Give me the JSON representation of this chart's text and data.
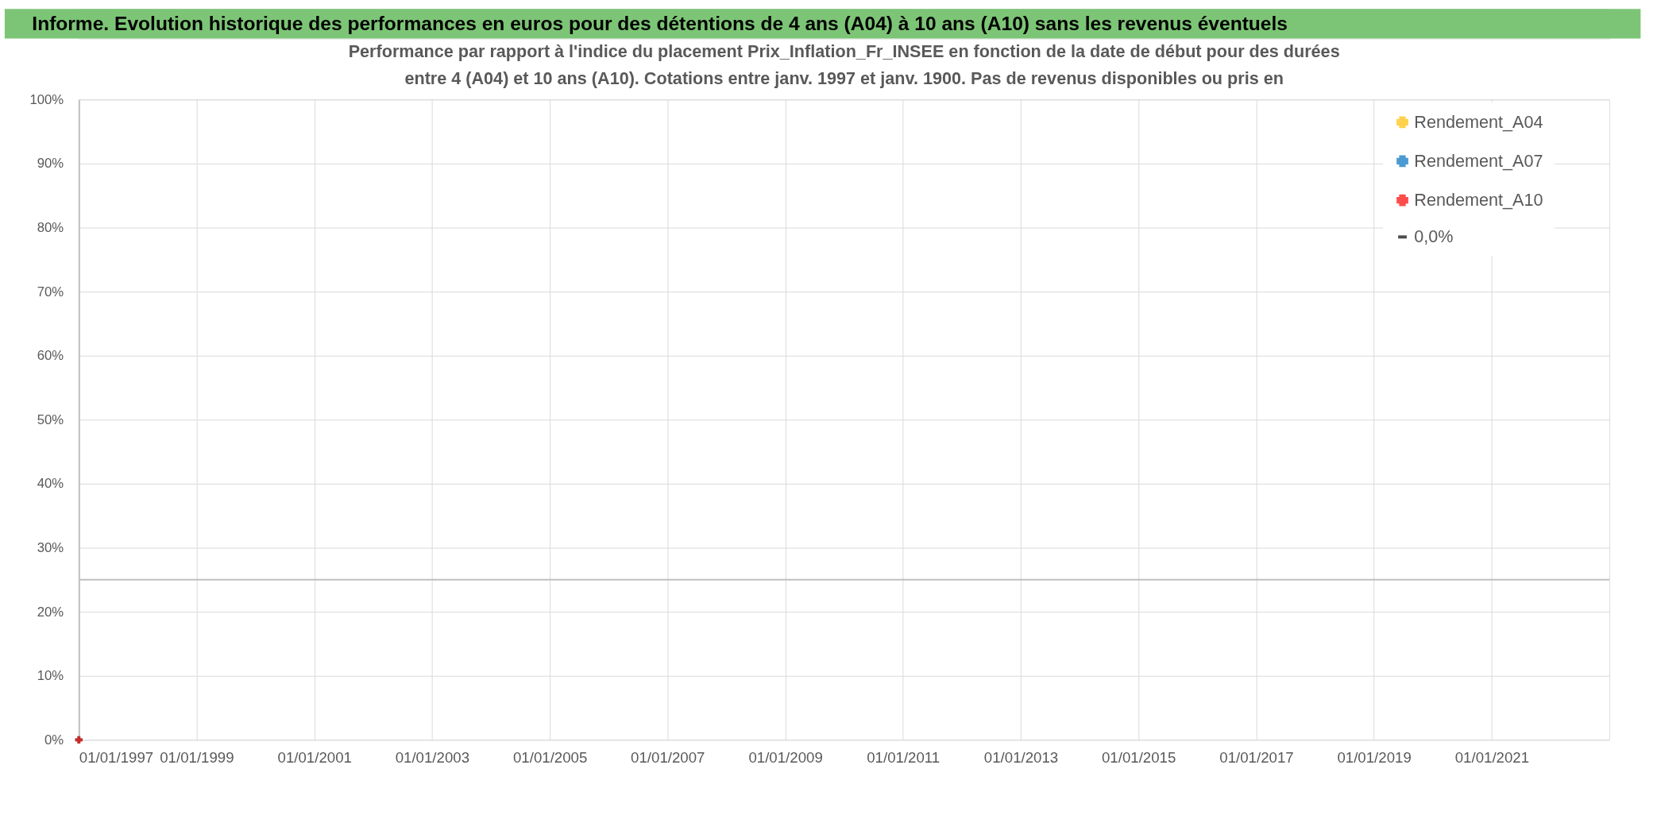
{
  "chart_data": {
    "type": "scatter",
    "title": "Informe. Evolution historique des performances en euros pour des détentions de 4 ans (A04) à 10 ans (A10) sans les revenus éventuels",
    "subtitle": [
      "Performance par rapport à l'indice du placement Prix_Inflation_Fr_INSEE en fonction de la date de début pour des durées",
      "entre 4 (A04) et 10 ans (A10). Cotations entre janv. 1997 et janv. 1900. Pas de revenus disponibles ou pris en"
    ],
    "series": [
      {
        "name": "Rendement_A04",
        "color": "#ffc000",
        "x": [
          "1997-01-01"
        ],
        "values": [
          0
        ]
      },
      {
        "name": "Rendement_A07",
        "color": "#0070c0",
        "x": [
          "1997-01-01"
        ],
        "values": [
          0
        ]
      },
      {
        "name": "Rendement_A10",
        "color": "#ff0000",
        "x": [
          "1997-01-01"
        ],
        "values": [
          0
        ]
      },
      {
        "name": "0,0%",
        "type": "line",
        "color": "#000000"
      }
    ],
    "xlim": [
      "1997-01-01",
      "2023-01-01"
    ],
    "xticks": [
      {
        "value": "1997-01-01",
        "label": "01/01/1997"
      },
      {
        "value": "1999-01-01",
        "label": "01/01/1999"
      },
      {
        "value": "2001-01-01",
        "label": "01/01/2001"
      },
      {
        "value": "2003-01-01",
        "label": "01/01/2003"
      },
      {
        "value": "2005-01-01",
        "label": "01/01/2005"
      },
      {
        "value": "2007-01-01",
        "label": "01/01/2007"
      },
      {
        "value": "2009-01-01",
        "label": "01/01/2009"
      },
      {
        "value": "2011-01-01",
        "label": "01/01/2011"
      },
      {
        "value": "2013-01-01",
        "label": "01/01/2013"
      },
      {
        "value": "2015-01-01",
        "label": "01/01/2015"
      },
      {
        "value": "2017-01-01",
        "label": "01/01/2017"
      },
      {
        "value": "2019-01-01",
        "label": "01/01/2019"
      },
      {
        "value": "2021-01-01",
        "label": "01/01/2021"
      }
    ],
    "ylim": [
      0,
      100
    ],
    "yticks": [
      {
        "value": 0,
        "label": "0%"
      },
      {
        "value": 10,
        "label": "10%"
      },
      {
        "value": 20,
        "label": "20%"
      },
      {
        "value": 30,
        "label": "30%"
      },
      {
        "value": 40,
        "label": "40%"
      },
      {
        "value": 50,
        "label": "50%"
      },
      {
        "value": 60,
        "label": "60%"
      },
      {
        "value": 70,
        "label": "70%"
      },
      {
        "value": 80,
        "label": "80%"
      },
      {
        "value": 90,
        "label": "90%"
      },
      {
        "value": 100,
        "label": "100%"
      }
    ],
    "ref_lines": [
      {
        "axis": "y",
        "value": 25,
        "color": "#bfbfbf"
      }
    ],
    "grid": true,
    "legend": "top right",
    "marker": "cross"
  }
}
